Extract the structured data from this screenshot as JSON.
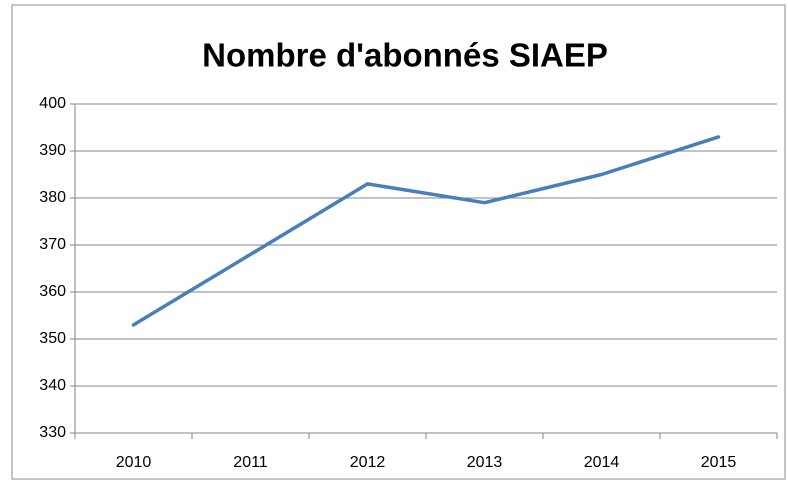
{
  "chart_data": {
    "type": "line",
    "title": "Nombre d'abonnés SIAEP",
    "categories": [
      "2010",
      "2011",
      "2012",
      "2013",
      "2014",
      "2015"
    ],
    "values": [
      353,
      368,
      383,
      379,
      385,
      393
    ],
    "color": "#4a7ebb",
    "ylim": [
      330,
      400
    ],
    "yticks": [
      330,
      340,
      350,
      360,
      370,
      380,
      390,
      400
    ],
    "grid": true
  }
}
